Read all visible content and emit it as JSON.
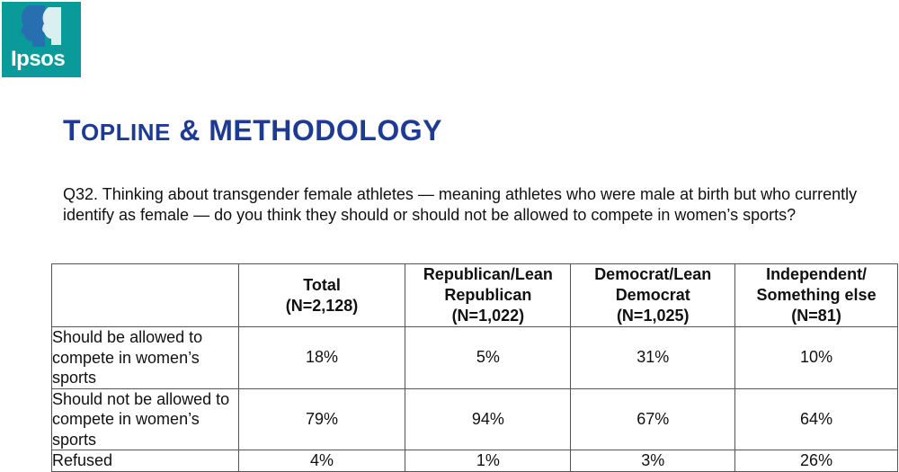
{
  "logo": {
    "text": "Ipsos",
    "color": "#0a9a9a"
  },
  "header": {
    "title_first": "T",
    "title_rest": "OPLINE",
    "title_amp": "& METHODOLOGY",
    "title_color": "#1f3a93"
  },
  "question": "Q32. Thinking about transgender female athletes — meaning athletes who were male at birth but who currently identify as female — do you think they should or should not be allowed to compete in women’s sports?",
  "table": {
    "columns": [
      {
        "name": "Total",
        "n": "(N=2,128)"
      },
      {
        "name": "Republican/Lean Republican",
        "n": "(N=1,022)"
      },
      {
        "name": "Democrat/Lean Democrat",
        "n": "(N=1,025)"
      },
      {
        "name": "Independent/ Something else",
        "n": "(N=81)"
      }
    ],
    "rows": [
      {
        "label": "Should be allowed to compete in women’s sports",
        "values": [
          "18%",
          "5%",
          "31%",
          "10%"
        ]
      },
      {
        "label": "Should not be allowed to compete in women’s sports",
        "values": [
          "79%",
          "94%",
          "67%",
          "64%"
        ]
      },
      {
        "label": "Refused",
        "values": [
          "4%",
          "1%",
          "3%",
          "26%"
        ]
      }
    ]
  }
}
